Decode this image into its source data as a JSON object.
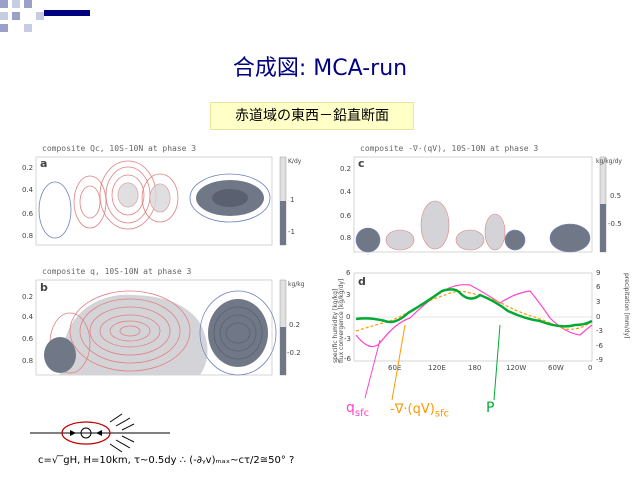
{
  "title": "合成図: MCA-run",
  "subtitle": "赤道域の東西－鉛直断面",
  "panels": {
    "a": {
      "label": "a",
      "title": "composite Qc, 10S-10N at phase 3",
      "unit": "K/dy",
      "cbar_ticks": [
        "1",
        "-1"
      ]
    },
    "b": {
      "label": "b",
      "title": "composite q, 10S-10N at phase 3",
      "unit": "kg/kg",
      "cbar_ticks": [
        "0.2",
        "-0.2"
      ]
    },
    "c": {
      "label": "c",
      "title": "composite -∇·(qV), 10S-10N at phase 3",
      "unit": "kg/kg/dy",
      "cbar_ticks": [
        "0.5",
        "-0.5"
      ]
    },
    "d": {
      "label": "d",
      "ylabel_left": "specific humidity [kg/kg]",
      "ylabel_left2": "flux convergence [kg/kg/dy]",
      "ylabel_right": "precipitation [mm/dy]"
    }
  },
  "pressure_ticks": [
    "0.2",
    "0.4",
    "0.6",
    "0.8"
  ],
  "d_left_ticks": [
    "6",
    "3",
    "0",
    "-3",
    "-6"
  ],
  "d_right_ticks": [
    "9",
    "6",
    "3",
    "0",
    "-3",
    "-6",
    "-9"
  ],
  "x_ticks": [
    "60E",
    "120E",
    "180",
    "120W",
    "60W",
    "0"
  ],
  "annotations": {
    "qsfc": "q",
    "qsfc_sub": "sfc",
    "flux": "-∇·(qV)",
    "flux_sub": "sfc",
    "precip": "P"
  },
  "formula": "c=√‾gH, H=10km, τ~0.5dy  ∴ (-∂ᵧv)ₘₐₓ~cτ/2≅50°  ?",
  "colors": {
    "title": "#000080",
    "q_line": "#ff44cc",
    "flux_line": "#ff9900",
    "p_line": "#00aa33",
    "pos_contour": "#e08080",
    "neg_fill": "#707888",
    "neg_contour": "#7080c0"
  }
}
